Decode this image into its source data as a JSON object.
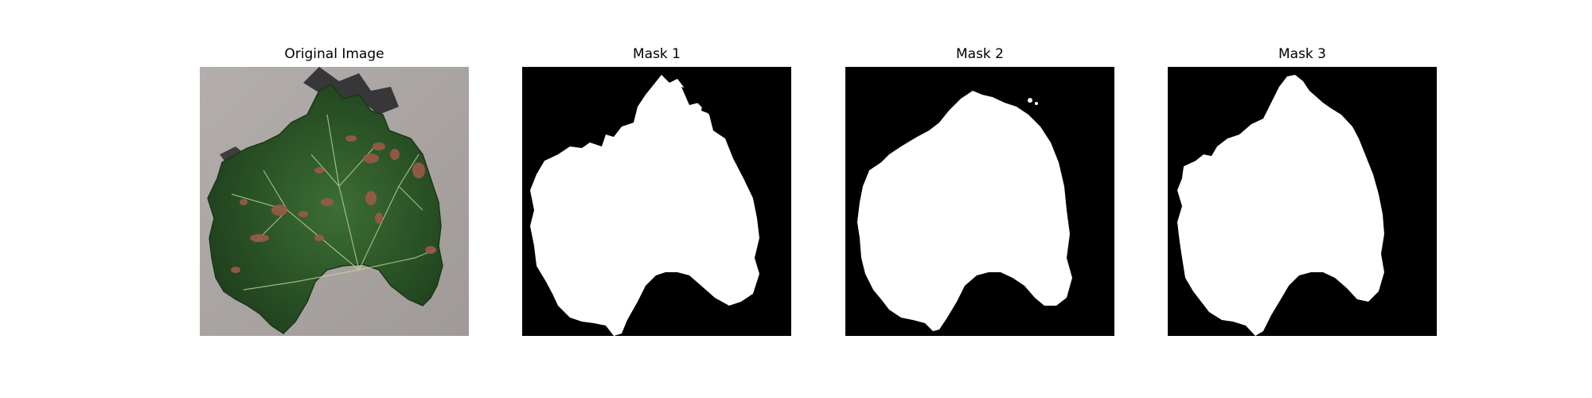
{
  "figure": {
    "panels": [
      {
        "title": "Original Image"
      },
      {
        "title": "Mask 1"
      },
      {
        "title": "Mask 2"
      },
      {
        "title": "Mask 3"
      }
    ]
  },
  "colors": {
    "background": "#ffffff",
    "mask_background": "#000000",
    "mask_foreground": "#ffffff",
    "leaf_green": "#2f5a2a",
    "table_gray": "#a8a29f",
    "lesion_brown": "#9a5a48"
  }
}
